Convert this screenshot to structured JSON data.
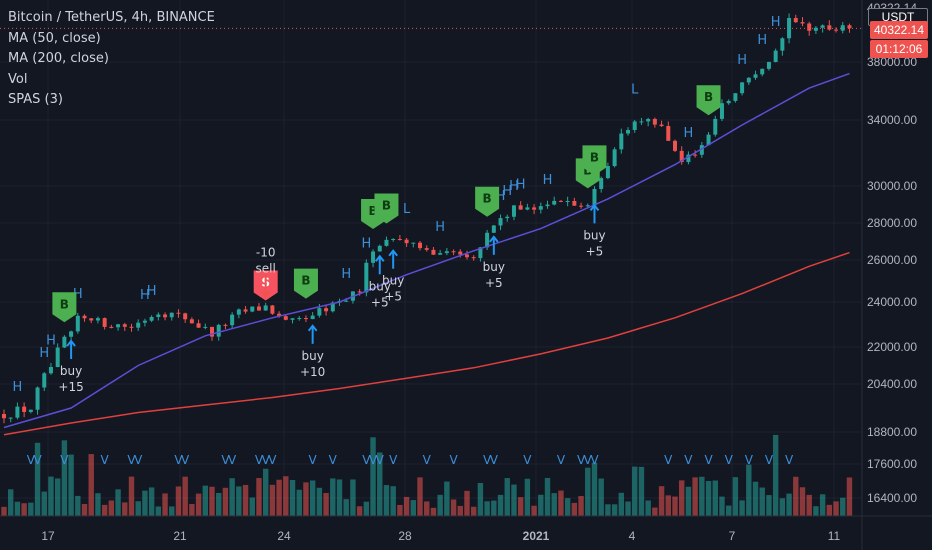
{
  "legend": {
    "symbol": "Bitcoin / TetherUS, 4h, BINANCE",
    "ma50": "MA (50, close)",
    "ma200": "MA (200, close)",
    "vol": "Vol",
    "spas": "SPAS (3)"
  },
  "price_scale": {
    "currency": "USDT",
    "last_price": "40322.14",
    "countdown": "01:12:06",
    "top_label": "40322.14",
    "colors": {
      "last": "#ef5350",
      "currency": "#131722"
    }
  },
  "chart_data": {
    "type": "candlestick",
    "title": "Bitcoin / TetherUS, 4h, BINANCE",
    "y_ticks": [
      16400,
      17600,
      18800,
      20400,
      22000,
      24000,
      26000,
      28000,
      30000,
      34000,
      38000
    ],
    "y_tick_labels": [
      "16400.00",
      "17600.00",
      "18800.00",
      "20400.00",
      "22000.00",
      "24000.00",
      "26000.00",
      "28000.00",
      "30000.00",
      "34000.00",
      "38000.00"
    ],
    "x_tick_labels": [
      "17",
      "21",
      "24",
      "28",
      "2021",
      "4",
      "7",
      "11"
    ],
    "ylim": [
      15700,
      41200
    ],
    "price_path": [
      [
        0,
        19400
      ],
      [
        4,
        19600
      ],
      [
        8,
        21800
      ],
      [
        11,
        23300
      ],
      [
        14,
        23100
      ],
      [
        19,
        22900
      ],
      [
        23,
        23600
      ],
      [
        27,
        23300
      ],
      [
        31,
        22600
      ],
      [
        35,
        23500
      ],
      [
        39,
        23800
      ],
      [
        43,
        23100
      ],
      [
        47,
        23600
      ],
      [
        50,
        24000
      ],
      [
        53,
        24600
      ],
      [
        55,
        26700
      ],
      [
        59,
        27300
      ],
      [
        62,
        26500
      ],
      [
        67,
        26500
      ],
      [
        70,
        26300
      ],
      [
        73,
        27900
      ],
      [
        76,
        28700
      ],
      [
        80,
        29000
      ],
      [
        84,
        29100
      ],
      [
        87,
        28900
      ],
      [
        90,
        31000
      ],
      [
        92,
        33300
      ],
      [
        95,
        34200
      ],
      [
        98,
        33600
      ],
      [
        101,
        31500
      ],
      [
        104,
        32300
      ],
      [
        107,
        35000
      ],
      [
        111,
        37000
      ],
      [
        114,
        38300
      ],
      [
        117,
        40700
      ],
      [
        120,
        40400
      ],
      [
        124,
        40300
      ],
      [
        126,
        40322
      ]
    ],
    "series": [
      {
        "name": "MA (50, close)",
        "color": "#5b4fd8",
        "points": [
          [
            0,
            18950
          ],
          [
            10,
            19600
          ],
          [
            20,
            21200
          ],
          [
            30,
            22500
          ],
          [
            40,
            23300
          ],
          [
            50,
            24000
          ],
          [
            60,
            25300
          ],
          [
            70,
            26500
          ],
          [
            80,
            27700
          ],
          [
            90,
            29300
          ],
          [
            100,
            31300
          ],
          [
            110,
            33700
          ],
          [
            120,
            36200
          ],
          [
            126,
            37200
          ]
        ]
      },
      {
        "name": "MA (200, close)",
        "color": "#e0403e",
        "points": [
          [
            0,
            18700
          ],
          [
            10,
            19100
          ],
          [
            20,
            19450
          ],
          [
            30,
            19700
          ],
          [
            40,
            19950
          ],
          [
            50,
            20250
          ],
          [
            60,
            20650
          ],
          [
            70,
            21100
          ],
          [
            80,
            21700
          ],
          [
            90,
            22400
          ],
          [
            100,
            23300
          ],
          [
            110,
            24400
          ],
          [
            120,
            25700
          ],
          [
            126,
            26400
          ]
        ]
      }
    ],
    "signals": [
      {
        "type": "B",
        "bar": 9
      },
      {
        "type": "S",
        "bar": 39
      },
      {
        "type": "B",
        "bar": 45
      },
      {
        "type": "B",
        "bar": 55
      },
      {
        "type": "B",
        "bar": 57
      },
      {
        "type": "B",
        "bar": 72
      },
      {
        "type": "B",
        "bar": 87
      },
      {
        "type": "B",
        "bar": 88
      },
      {
        "type": "B",
        "bar": 105
      }
    ],
    "trade_labels": [
      {
        "bar": 10,
        "text": "buy\n+15"
      },
      {
        "bar": 39,
        "text": "-10\nsell"
      },
      {
        "bar": 46,
        "text": "buy\n+10"
      },
      {
        "bar": 56,
        "text": "buy\n+5"
      },
      {
        "bar": 58,
        "text": "buy\n+5"
      },
      {
        "bar": 73,
        "text": "buy\n+5"
      },
      {
        "bar": 88,
        "text": "buy\n+5"
      }
    ],
    "h_markers": [
      2,
      6,
      7,
      10,
      11,
      21,
      22,
      51,
      54,
      65,
      74,
      75,
      76,
      77,
      81,
      102,
      110,
      113,
      115
    ],
    "l_markers": [
      60,
      94
    ],
    "v_markers": [
      4,
      5,
      9,
      15,
      19,
      20,
      26,
      27,
      33,
      34,
      38,
      39,
      40,
      46,
      49,
      54,
      55,
      56,
      58,
      63,
      67,
      72,
      73,
      78,
      83,
      86,
      87,
      88,
      99,
      102,
      105,
      108,
      111,
      114,
      117
    ]
  }
}
